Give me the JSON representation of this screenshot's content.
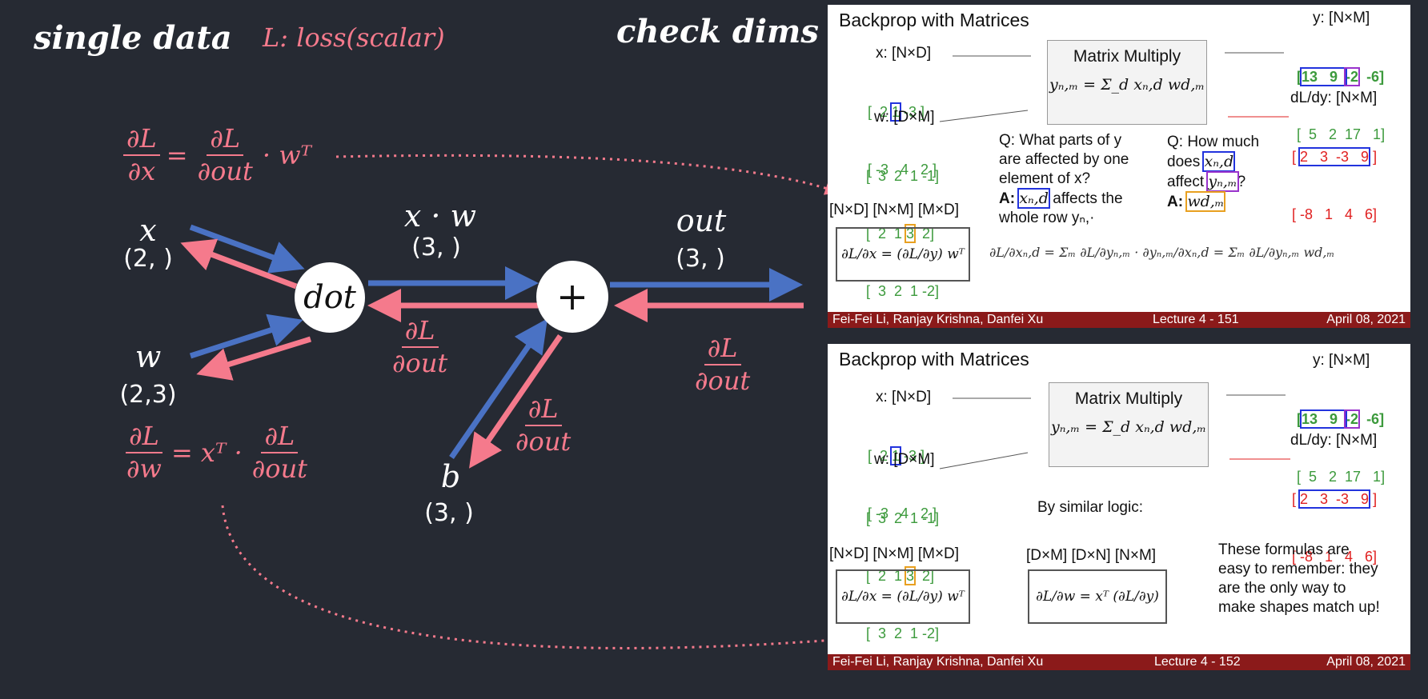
{
  "header": {
    "single_data": "single data",
    "loss_note": "L: loss(scalar)",
    "check_dims": "check dims"
  },
  "graph": {
    "dx_num": "∂L",
    "dx_den": "∂x",
    "dx_rhs_num": "∂L",
    "dx_rhs_den": "∂out",
    "dx_tail": "· wᵀ",
    "dw_num": "∂L",
    "dw_den": "∂w",
    "dw_mid": "= xᵀ ·",
    "dw_rhs_num": "∂L",
    "dw_rhs_den": "∂out",
    "x_label": "x",
    "x_shape": "(2, )",
    "w_label": "w",
    "w_shape": "(2,3)",
    "xw_label": "x · w",
    "xw_shape": "(3, )",
    "out_label": "out",
    "out_shape": "(3, )",
    "b_label": "b",
    "b_shape": "(3, )",
    "dot_node": "dot",
    "plus_node": "+",
    "g_num": "∂L",
    "g_den": "∂out",
    "colors": {
      "forward": "#4a72c4",
      "backward": "#f57a8c",
      "background": "#262a33"
    }
  },
  "slide1": {
    "title": "Backprop with Matrices",
    "x_label": "x: [N×D]",
    "x_row1": [
      "[  2 ",
      "1",
      " -3 ]"
    ],
    "x_row2": "[ -3   4   2 ]",
    "w_label": "w: [D×M]",
    "w_row1": "[  3  2  1 -1]",
    "w_row2": [
      "[  2  1 ",
      "3",
      "  2]"
    ],
    "w_row3": "[  3  2  1 -2]",
    "mm_title": "Matrix Multiply",
    "mm_formula": "yₙ,ₘ = Σ_d xₙ,d wd,ₘ",
    "y_label": "y: [N×M]",
    "y_row1": [
      "[",
      "13   9  ",
      "-2",
      "  -6",
      "]"
    ],
    "y_row2": "[  5   2  17   1]",
    "dy_label": "dL/dy: [N×M]",
    "dy_row1": [
      "[ ",
      "2   3  -3   9",
      " ]"
    ],
    "dy_row2": "[ -8   1   4   6]",
    "q1_line1": "Q: What parts of y",
    "q1_line2": "are affected by one",
    "q1_line3": "element of x?",
    "a1_pre": "A:",
    "a1_box": "xₙ,d",
    "a1_post": "affects the",
    "a1_line2": "whole row yₙ,·",
    "q2_line1": "Q: How much",
    "q2_line2_pre": "does",
    "q2_line2_box": "xₙ,d",
    "q2_line3_pre": "affect",
    "q2_line3_box": "yₙ,ₘ",
    "q2_line3_post": "?",
    "a2_pre": "A:",
    "a2_box": "wd,ₘ",
    "dims": "[N×D]  [N×M] [M×D]",
    "boxed_eq": "∂L/∂x = (∂L/∂y) wᵀ",
    "chain_eq": "∂L/∂xₙ,d = Σₘ ∂L/∂yₙ,ₘ · ∂yₙ,ₘ/∂xₙ,d = Σₘ ∂L/∂yₙ,ₘ wd,ₘ",
    "footer_left": "Fei-Fei Li, Ranjay Krishna, Danfei Xu",
    "footer_mid": "Lecture 4 - 151",
    "footer_right": "April 08, 2021"
  },
  "slide2": {
    "title": "Backprop with Matrices",
    "x_label": "x: [N×D]",
    "x_row1": [
      "[  2 ",
      "1",
      " -3 ]"
    ],
    "x_row2": "[ -3   4   2 ]",
    "w_label": "w: [D×M]",
    "w_row1": "[  3  2  1 -1]",
    "w_row2": [
      "[  2  1 ",
      "3",
      "  2]"
    ],
    "w_row3": "[  3  2  1 -2]",
    "mm_title": "Matrix Multiply",
    "mm_formula": "yₙ,ₘ = Σ_d xₙ,d wd,ₘ",
    "y_label": "y: [N×M]",
    "y_row1": [
      "[",
      "13   9  ",
      "-2",
      "  -6",
      "]"
    ],
    "y_row2": "[  5   2  17   1]",
    "dy_label": "dL/dy: [N×M]",
    "dy_row1": [
      "[ ",
      "2   3  -3   9",
      " ]"
    ],
    "dy_row2": "[ -8   1   4   6]",
    "similar": "By similar logic:",
    "dims1": "[N×D]  [N×M] [M×D]",
    "boxed_eq1": "∂L/∂x = (∂L/∂y) wᵀ",
    "dims2": "[D×M]  [D×N] [N×M]",
    "boxed_eq2": "∂L/∂w = xᵀ (∂L/∂y)",
    "note1": "These formulas are",
    "note2": "easy to remember: they",
    "note3": "are the only way to",
    "note4": "make shapes match up!",
    "footer_left": "Fei-Fei Li, Ranjay Krishna, Danfei Xu",
    "footer_mid": "Lecture 4 - 152",
    "footer_right": "April 08, 2021"
  }
}
